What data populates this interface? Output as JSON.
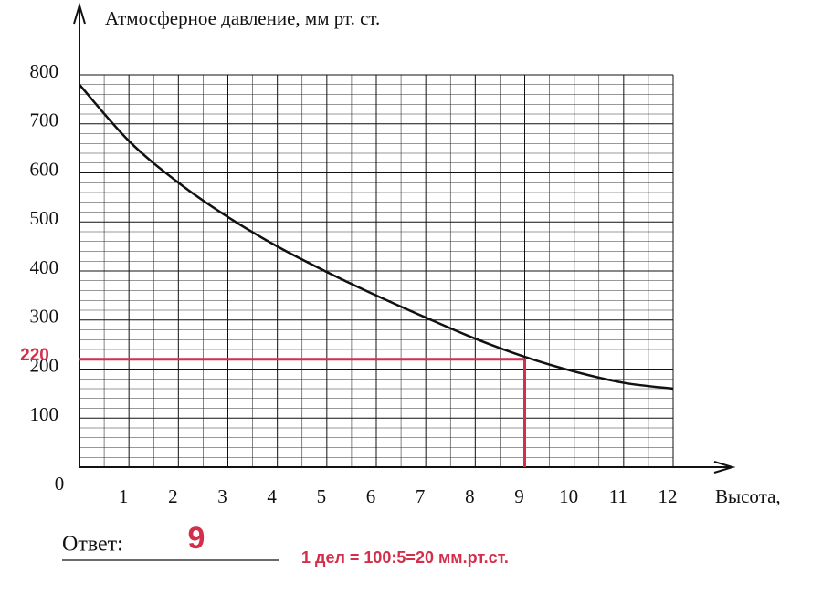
{
  "chart_data": {
    "type": "line",
    "title": "Атмосферное давление, мм  рт. ст.",
    "x_label": "Высота,",
    "x": [
      0,
      1,
      2,
      3,
      4,
      5,
      6,
      7,
      8,
      9,
      10,
      11,
      12
    ],
    "series": [
      {
        "color": "#111111",
        "values": [
          780,
          665,
          580,
          510,
          450,
          398,
          350,
          305,
          262,
          225,
          195,
          172,
          160
        ]
      }
    ],
    "xlim": [
      0,
      12
    ],
    "xticks": [
      1,
      2,
      3,
      4,
      5,
      6,
      7,
      8,
      9,
      10,
      11,
      12
    ],
    "ylim": [
      0,
      800
    ],
    "yticks": [
      0,
      100,
      200,
      300,
      400,
      500,
      600,
      700,
      800
    ],
    "grid": true,
    "reference": {
      "x": 9,
      "y": 220,
      "color": "#d32f4a"
    },
    "answer_label": "Ответ:",
    "note": "1 дел = 100:5=20 мм.рт.ст."
  }
}
